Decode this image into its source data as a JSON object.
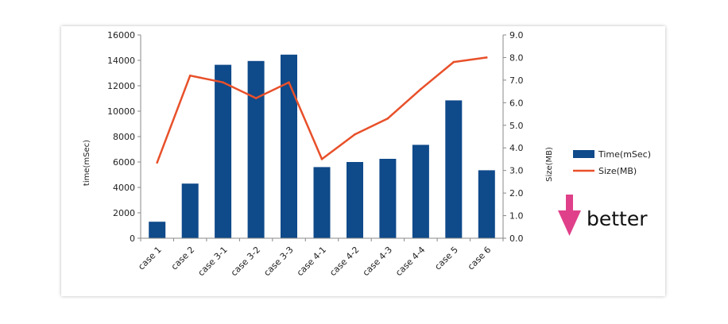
{
  "chart_data": {
    "type": "bar",
    "categories": [
      "case 1",
      "case 2",
      "case 3-1",
      "case 3-2",
      "case 3-3",
      "case 4-1",
      "case 4-2",
      "case 4-3",
      "case 4-4",
      "case 5",
      "case 6"
    ],
    "series": [
      {
        "name": "Time(mSec)",
        "type": "bar",
        "axis": "left",
        "color": "#0f4a8a",
        "values": [
          1300,
          4300,
          13650,
          13950,
          14450,
          5600,
          6000,
          6250,
          7350,
          10850,
          5350
        ]
      },
      {
        "name": "Size(MB)",
        "type": "line",
        "axis": "right",
        "color": "#e8502a",
        "values": [
          3.35,
          7.2,
          6.9,
          6.2,
          6.9,
          3.5,
          4.6,
          5.3,
          6.6,
          7.8,
          8.0
        ]
      }
    ],
    "ylabel": "time(mSec)",
    "y2label": "Size(MB)",
    "ylim": [
      0,
      16000
    ],
    "yticks": [
      "0",
      "2000",
      "4000",
      "6000",
      "8000",
      "10000",
      "12000",
      "14000",
      "16000"
    ],
    "y2lim": [
      0,
      9
    ],
    "y2ticks": [
      "0.0",
      "1.0",
      "2.0",
      "3.0",
      "4.0",
      "5.0",
      "6.0",
      "7.0",
      "8.0",
      "9.0"
    ],
    "grid": false,
    "legend_position": "right"
  },
  "annotation": {
    "text": "better",
    "arrow_color": "#e0408a",
    "direction": "down"
  }
}
